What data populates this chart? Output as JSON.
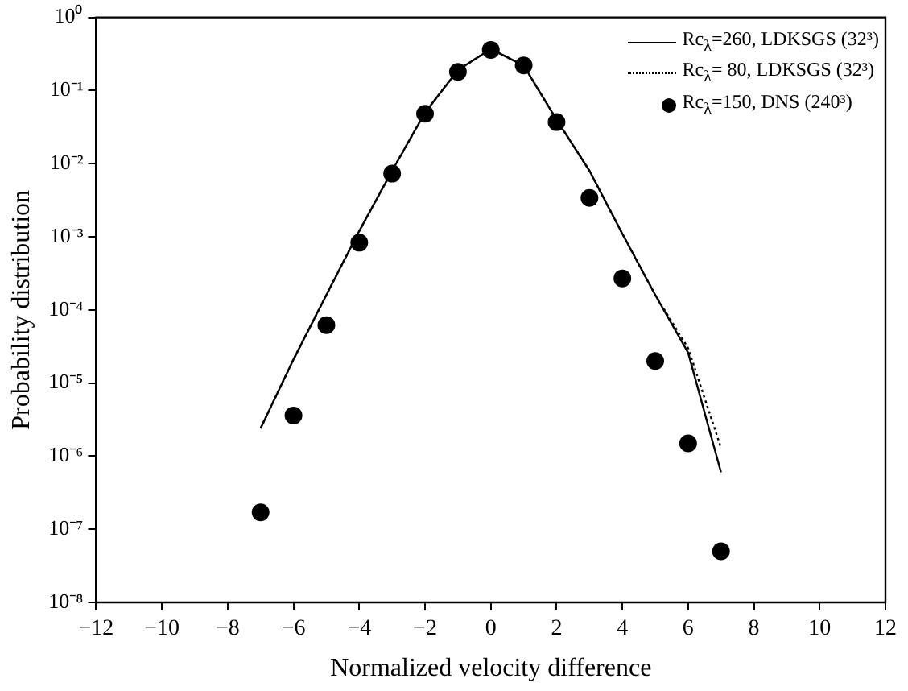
{
  "chart_data": {
    "type": "line",
    "xlabel": "Normalized velocity difference",
    "ylabel": "Probability distribution",
    "x": [
      -7,
      -6,
      -5,
      -4,
      -3,
      -2,
      -1,
      0,
      1,
      2,
      3,
      4,
      5,
      6,
      7
    ],
    "series": [
      {
        "name": "Rc$_{λ}$=260, LDKSGS (32³)",
        "color": "#000000",
        "line_style": "solid",
        "marker": "none",
        "values": [
          2.4e-06,
          2.1e-05,
          0.00016,
          0.0012,
          0.008,
          0.05,
          0.19,
          0.37,
          0.22,
          0.04,
          0.008,
          0.0011,
          0.00016,
          2.6e-05,
          6e-07
        ]
      },
      {
        "name": "Rc$_{λ}$= 80, LDKSGS (32³)",
        "color": "#000000",
        "line_style": "dotted",
        "marker": "none",
        "values": [
          2.4e-06,
          2.1e-05,
          0.00016,
          0.0012,
          0.008,
          0.05,
          0.19,
          0.37,
          0.22,
          0.04,
          0.008,
          0.0011,
          0.00016,
          3e-05,
          1.3e-06
        ]
      },
      {
        "name": "Rc$_{λ}$=150, DNS (240³)",
        "type": "scatter",
        "color": "#000000",
        "marker": "circle",
        "values": [
          1.7e-07,
          3.6e-06,
          6.2e-05,
          0.00083,
          0.0073,
          0.048,
          0.18,
          0.36,
          0.22,
          0.037,
          0.0034,
          0.00027,
          2e-05,
          1.5e-06,
          5e-08
        ]
      }
    ],
    "log": "y",
    "grid": false,
    "legend": "top right",
    "xlim": [
      -12,
      12
    ],
    "xticks": [
      -12,
      -10,
      -8,
      -6,
      -4,
      -2,
      0,
      2,
      4,
      6,
      8,
      10,
      12
    ],
    "ylim": [
      1e-08,
      1
    ],
    "yticks": [
      {
        "value": 1e-08,
        "label": "10⁻⁸"
      },
      {
        "value": 1e-07,
        "label": "10⁻⁷"
      },
      {
        "value": 1e-06,
        "label": "10⁻⁶"
      },
      {
        "value": 1e-05,
        "label": "10⁻⁵"
      },
      {
        "value": 0.0001,
        "label": "10⁻⁴"
      },
      {
        "value": 0.001,
        "label": "10⁻³"
      },
      {
        "value": 0.01,
        "label": "10⁻²"
      },
      {
        "value": 0.1,
        "label": "10⁻¹"
      },
      {
        "value": 1,
        "label": "10⁰"
      }
    ]
  }
}
